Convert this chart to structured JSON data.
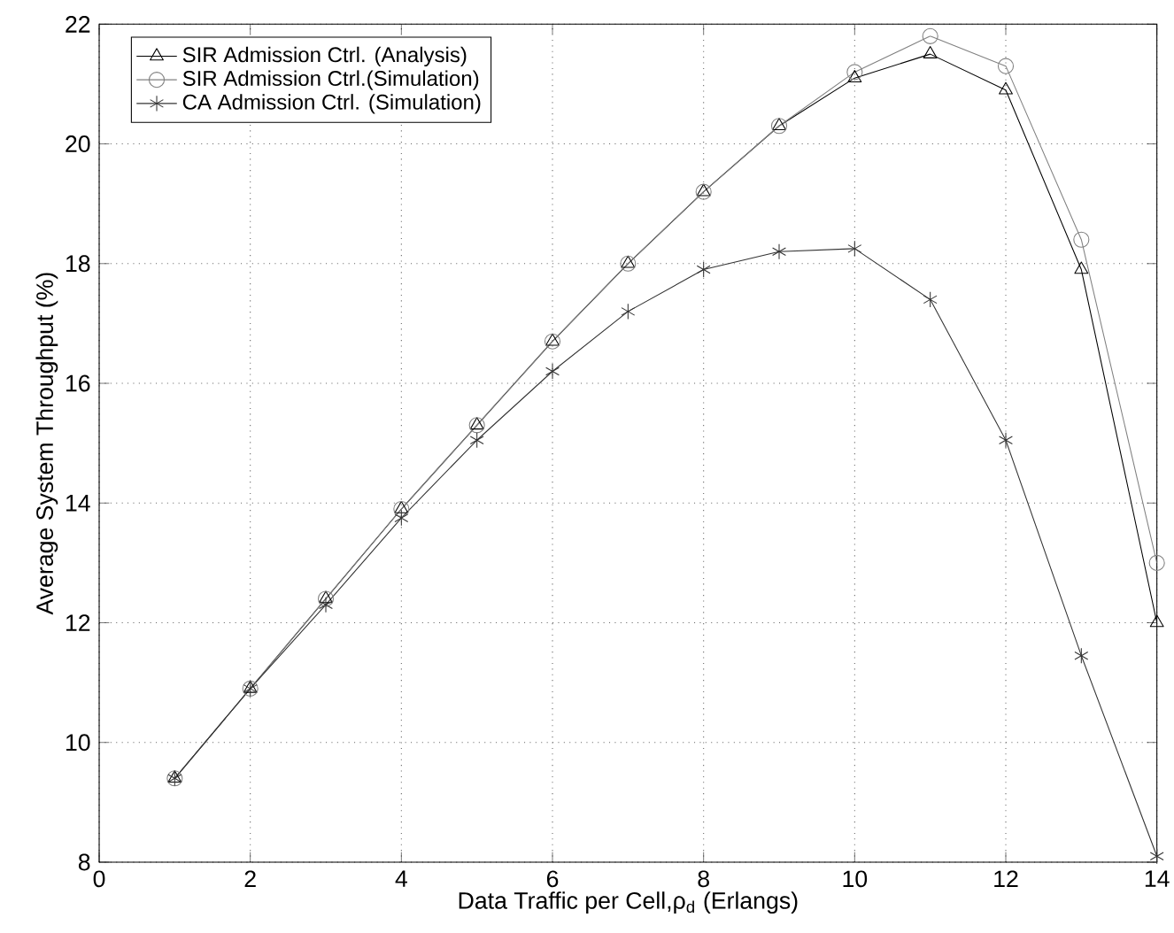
{
  "chart_data": {
    "type": "line",
    "xlabel": "Data Traffic per Cell,ρ$_{d}$ (Erlangs)",
    "ylabel": "Average System Throughput (%)",
    "x": [
      1,
      2,
      3,
      4,
      5,
      6,
      7,
      8,
      9,
      10,
      11,
      12,
      13,
      14
    ],
    "series": [
      {
        "name": "SIR Admission Ctrl. (Analysis)",
        "color": "#000000",
        "marker": "triangle",
        "values": [
          9.4,
          10.9,
          12.4,
          13.9,
          15.3,
          16.7,
          18.0,
          19.2,
          20.3,
          21.1,
          21.5,
          20.9,
          17.9,
          12.0
        ]
      },
      {
        "name": "SIR Admission Ctrl.(Simulation)",
        "color": "#808080",
        "marker": "circle",
        "values": [
          9.4,
          10.9,
          12.4,
          13.9,
          15.3,
          16.7,
          18.0,
          19.2,
          20.3,
          21.2,
          21.8,
          21.3,
          18.4,
          13.0
        ]
      },
      {
        "name": "CA Admission Ctrl. (Simulation)",
        "color": "#333333",
        "marker": "cross",
        "values": [
          9.4,
          10.9,
          12.3,
          13.75,
          15.05,
          16.2,
          17.2,
          17.9,
          18.2,
          18.25,
          17.4,
          15.05,
          11.45,
          8.1
        ]
      }
    ],
    "xlim": [
      0,
      14
    ],
    "ylim": [
      8,
      22
    ],
    "xticks": [
      0,
      2,
      4,
      6,
      8,
      10,
      12,
      14
    ],
    "yticks": [
      8,
      10,
      12,
      14,
      16,
      18,
      20,
      22
    ],
    "grid": true,
    "legend": "top left",
    "line_style": "solid"
  }
}
